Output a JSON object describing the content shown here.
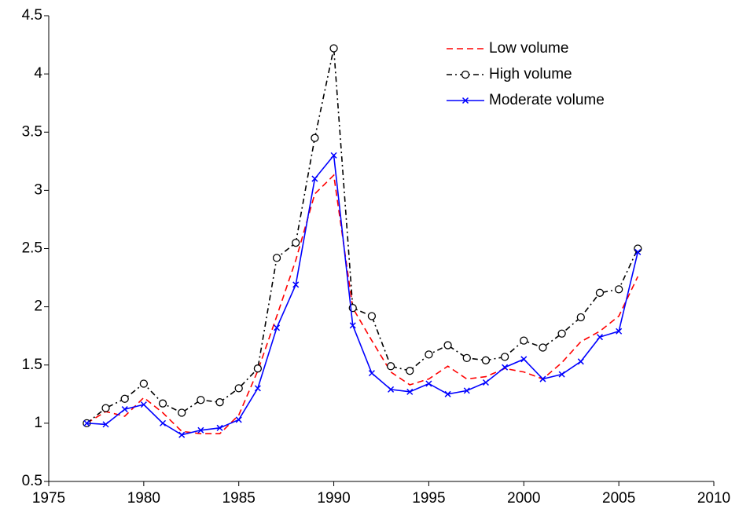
{
  "chart_data": {
    "type": "line",
    "x": [
      1977,
      1978,
      1979,
      1980,
      1981,
      1982,
      1983,
      1984,
      1985,
      1986,
      1987,
      1988,
      1989,
      1990,
      1991,
      1992,
      1993,
      1994,
      1995,
      1996,
      1997,
      1998,
      1999,
      2000,
      2001,
      2002,
      2003,
      2004,
      2005,
      2006
    ],
    "series": [
      {
        "name": "Low volume",
        "color": "#ff0000",
        "linestyle": "dashed",
        "marker": "none",
        "values": [
          1.0,
          1.1,
          1.06,
          1.22,
          1.09,
          0.93,
          0.91,
          0.91,
          1.07,
          1.45,
          1.92,
          2.4,
          2.97,
          3.13,
          1.99,
          1.71,
          1.44,
          1.33,
          1.38,
          1.49,
          1.38,
          1.4,
          1.47,
          1.44,
          1.38,
          1.52,
          1.7,
          1.79,
          1.92,
          2.26
        ]
      },
      {
        "name": "High volume",
        "color": "#000000",
        "linestyle": "dashdot",
        "marker": "circle",
        "values": [
          1.0,
          1.13,
          1.21,
          1.34,
          1.17,
          1.09,
          1.2,
          1.18,
          1.3,
          1.47,
          2.42,
          2.55,
          3.45,
          4.22,
          1.99,
          1.92,
          1.49,
          1.45,
          1.59,
          1.67,
          1.56,
          1.54,
          1.57,
          1.71,
          1.65,
          1.77,
          1.91,
          2.12,
          2.15,
          2.5
        ]
      },
      {
        "name": "Moderate volume",
        "color": "#0000ff",
        "linestyle": "solid",
        "marker": "x",
        "values": [
          1.0,
          0.99,
          1.12,
          1.16,
          1.0,
          0.9,
          0.94,
          0.96,
          1.03,
          1.3,
          1.82,
          2.19,
          3.1,
          3.3,
          1.84,
          1.43,
          1.29,
          1.27,
          1.34,
          1.25,
          1.28,
          1.35,
          1.48,
          1.55,
          1.38,
          1.42,
          1.53,
          1.74,
          1.79,
          2.47
        ]
      }
    ],
    "xlim": [
      1975,
      2010
    ],
    "xticks": [
      1975,
      1980,
      1985,
      1990,
      1995,
      2000,
      2005,
      2010
    ],
    "ylim": [
      0.5,
      4.5
    ],
    "yticks": [
      0.5,
      1,
      1.5,
      2,
      2.5,
      3,
      3.5,
      4,
      4.5
    ],
    "grid": false,
    "legend": "upper right"
  }
}
